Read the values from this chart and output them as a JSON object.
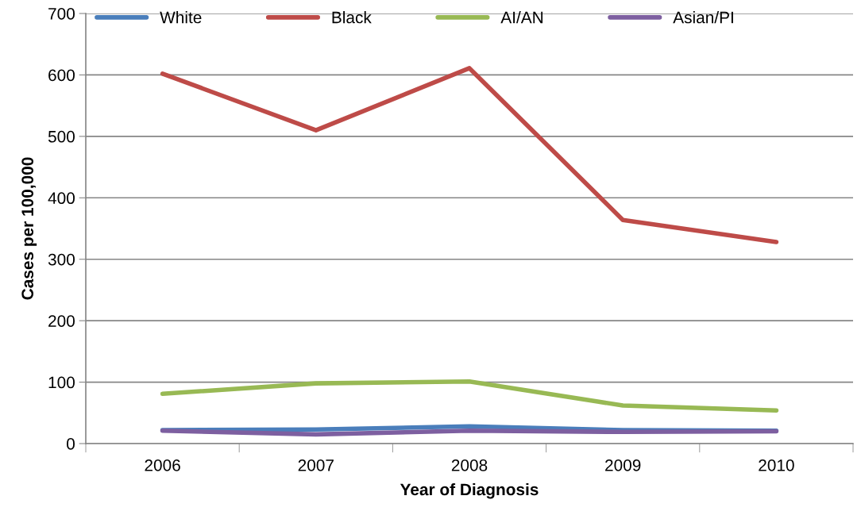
{
  "chart_data": {
    "type": "line",
    "xlabel": "Year of Diagnosis",
    "ylabel": "Cases per 100,000",
    "categories": [
      "2006",
      "2007",
      "2008",
      "2009",
      "2010"
    ],
    "series": [
      {
        "name": "White",
        "color": "#4a7ebb",
        "values": [
          22,
          23,
          28,
          22,
          21
        ]
      },
      {
        "name": "Black",
        "color": "#be4b48",
        "values": [
          602,
          510,
          611,
          364,
          328
        ]
      },
      {
        "name": "AI/AN",
        "color": "#98b954",
        "values": [
          81,
          98,
          101,
          62,
          54
        ]
      },
      {
        "name": "Asian/PI",
        "color": "#7d5fa0",
        "values": [
          21,
          15,
          21,
          19,
          20
        ]
      }
    ],
    "ylim": [
      0,
      700
    ],
    "yticks": [
      0,
      100,
      200,
      300,
      400,
      500,
      600,
      700
    ],
    "grid": "y",
    "legend": "top",
    "marker": "none",
    "line_style": "solid"
  }
}
